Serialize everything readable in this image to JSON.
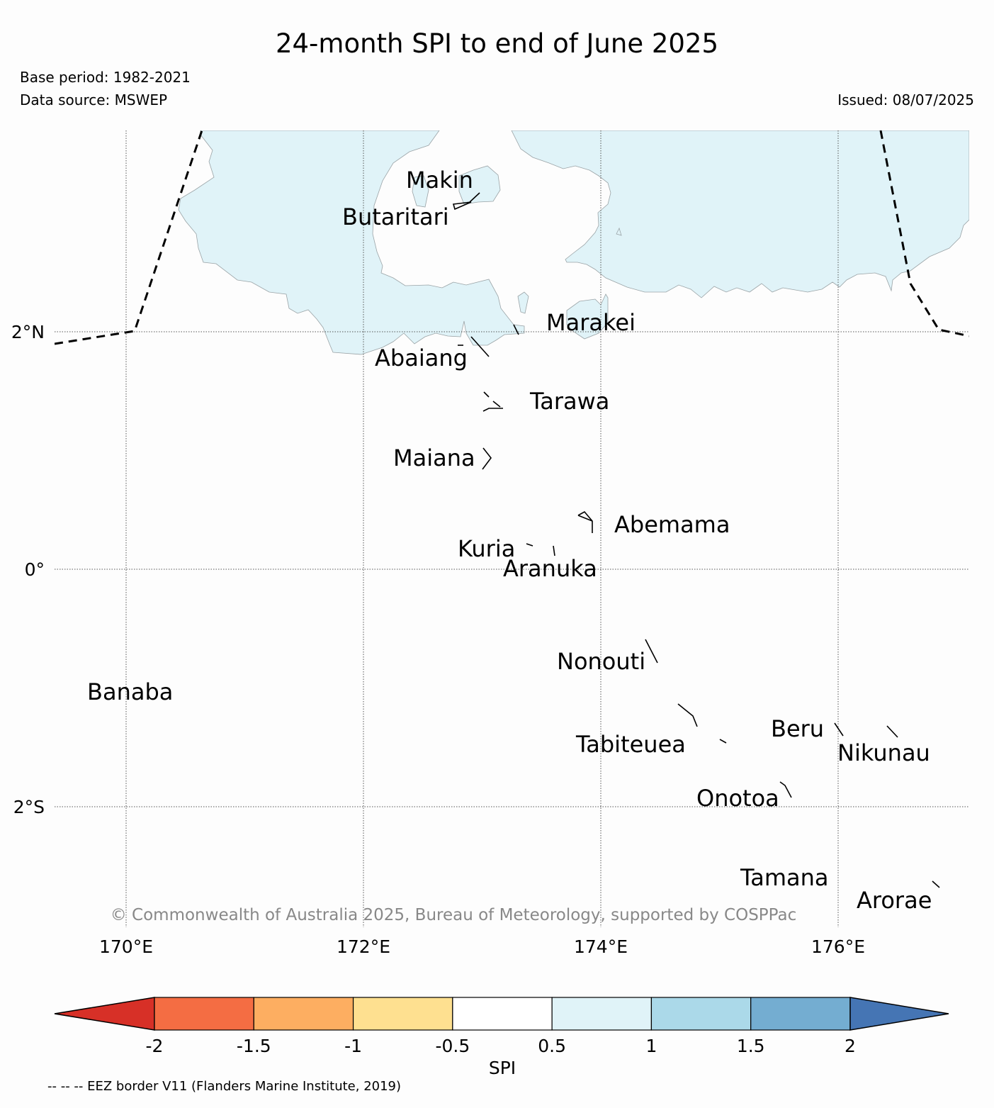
{
  "title": "24-month SPI to end of June 2025",
  "base_period": "Base period: 1982-2021",
  "data_source": "Data source: MSWEP",
  "issued": "Issued: 08/07/2025",
  "map": {
    "lat_labels": [
      "2°N",
      "0°",
      "2°S"
    ],
    "lon_labels": [
      "170°E",
      "172°E",
      "174°E",
      "176°E"
    ],
    "islands": [
      {
        "name": "Makin"
      },
      {
        "name": "Butaritari"
      },
      {
        "name": "Marakei"
      },
      {
        "name": "Abaiang"
      },
      {
        "name": "Tarawa"
      },
      {
        "name": "Maiana"
      },
      {
        "name": "Abemama"
      },
      {
        "name": "Kuria"
      },
      {
        "name": "Aranuka"
      },
      {
        "name": "Nonouti"
      },
      {
        "name": "Banaba"
      },
      {
        "name": "Beru"
      },
      {
        "name": "Tabiteuea"
      },
      {
        "name": "Nikunau"
      },
      {
        "name": "Onotoa"
      },
      {
        "name": "Tamana"
      },
      {
        "name": "Arorae"
      }
    ],
    "copyright": "© Commonwealth of Australia 2025, Bureau of Meteorology, supported by COSPPac",
    "colors": {
      "spi_0.5_to_1": "#e0f3f8"
    }
  },
  "colorbar": {
    "label": "SPI",
    "ticks": [
      "-2",
      "-1.5",
      "-1",
      "-0.5",
      "0.5",
      "1",
      "1.5",
      "2"
    ],
    "colors": [
      "#d73027",
      "#f46d43",
      "#fdae61",
      "#fee090",
      "#ffffff",
      "#e0f3f8",
      "#abd9e9",
      "#74add1",
      "#4575b4"
    ]
  },
  "footer_note": "-- -- -- EEZ border V11 (Flanders Marine Institute, 2019)"
}
